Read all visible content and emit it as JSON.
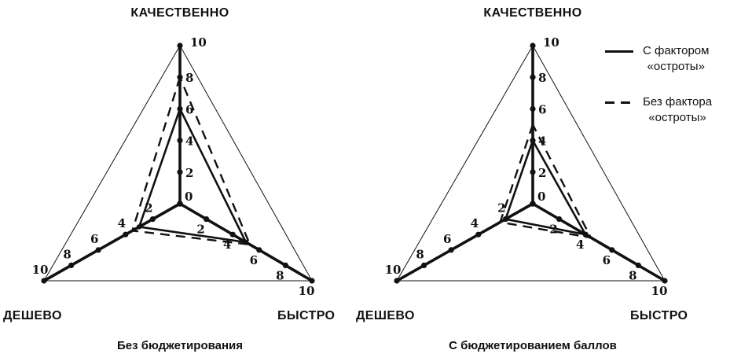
{
  "colors": {
    "line": "#111111",
    "background": "#ffffff"
  },
  "legend": {
    "entries": [
      {
        "style": "solid",
        "lines": [
          "С фактором",
          "«остроты»"
        ]
      },
      {
        "style": "dashed",
        "lines": [
          "Без фактора",
          "«остроты»"
        ]
      }
    ]
  },
  "chart_data": [
    {
      "type": "radar",
      "title": "Без бюджетирования",
      "axes": [
        "КАЧЕСТВЕННО",
        "ДЕШЕВО",
        "БЫСТРО"
      ],
      "axis_range": [
        0,
        10
      ],
      "ticks": [
        0,
        2,
        4,
        6,
        8,
        10
      ],
      "series": [
        {
          "name": "С фактором «остроты»",
          "line": "solid",
          "values": [
            6,
            3,
            5
          ]
        },
        {
          "name": "Без фактора «остроты»",
          "line": "dashed",
          "values": [
            8,
            3.5,
            5.3
          ]
        }
      ]
    },
    {
      "type": "radar",
      "title": "С бюджетированием баллов",
      "axes": [
        "КАЧЕСТВЕННО",
        "ДЕШЕВО",
        "БЫСТРО"
      ],
      "axis_range": [
        0,
        10
      ],
      "ticks": [
        0,
        2,
        4,
        6,
        8,
        10
      ],
      "series": [
        {
          "name": "С фактором «остроты»",
          "line": "solid",
          "values": [
            4,
            2,
            4
          ]
        },
        {
          "name": "Без фактора «остроты»",
          "line": "dashed",
          "values": [
            5,
            2.4,
            4.4
          ]
        }
      ]
    }
  ]
}
